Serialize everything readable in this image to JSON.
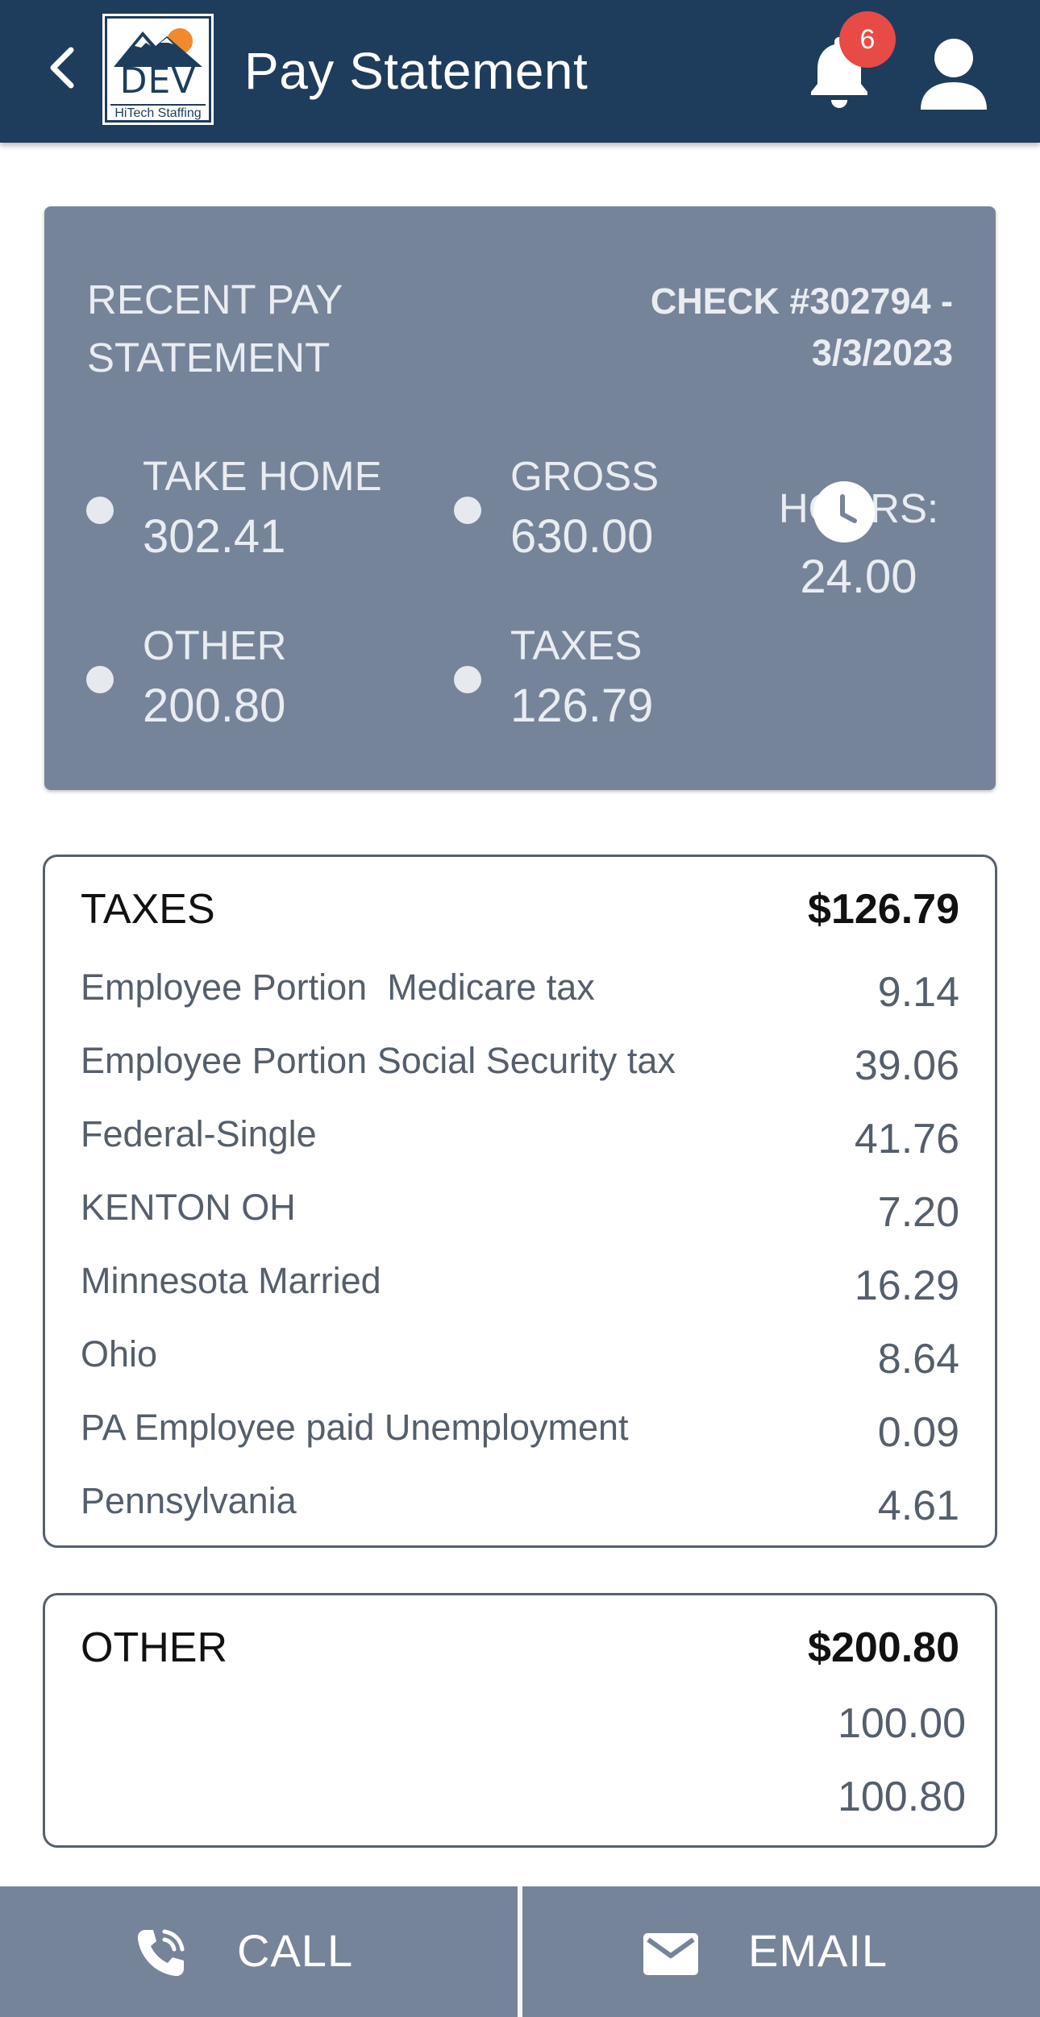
{
  "header": {
    "title": "Pay Statement",
    "logo": {
      "main": "DEV",
      "sub": "HiTech Staffing"
    },
    "notification_count": "6",
    "icons": {
      "back": "chevron-left-icon",
      "bell": "bell-icon",
      "user": "user-icon"
    }
  },
  "summary": {
    "title": "RECENT PAY STATEMENT",
    "check": "CHECK #302794 - 3/3/2023",
    "take_home": {
      "label": "TAKE HOME",
      "value": "302.41"
    },
    "gross": {
      "label": "GROSS",
      "value": "630.00"
    },
    "other": {
      "label": "OTHER",
      "value": "200.80"
    },
    "taxes": {
      "label": "TAXES",
      "value": "126.79"
    },
    "hours": {
      "label": "HOURS:",
      "value": "24.00"
    }
  },
  "taxes_card": {
    "label": "TAXES",
    "total": "$126.79",
    "items": [
      {
        "label": "Employee Portion  Medicare tax",
        "value": "9.14"
      },
      {
        "label": "Employee Portion Social Security tax",
        "value": "39.06"
      },
      {
        "label": "Federal-Single",
        "value": "41.76"
      },
      {
        "label": "KENTON OH",
        "value": "7.20"
      },
      {
        "label": "Minnesota Married",
        "value": "16.29"
      },
      {
        "label": "Ohio",
        "value": "8.64"
      },
      {
        "label": "PA Employee paid Unemployment",
        "value": "0.09"
      },
      {
        "label": "Pennsylvania",
        "value": "4.61"
      }
    ]
  },
  "other_card": {
    "label": "OTHER",
    "total": "$200.80",
    "items": [
      {
        "label": "",
        "value": "100.00"
      },
      {
        "label": "",
        "value": "100.80"
      }
    ]
  },
  "bottom_bar": {
    "call": "CALL",
    "email": "EMAIL"
  },
  "colors": {
    "header_bg": "#1e3d5c",
    "summary_bg": "#76849a",
    "badge": "#e84a45",
    "logo_sun": "#f08a2c"
  }
}
